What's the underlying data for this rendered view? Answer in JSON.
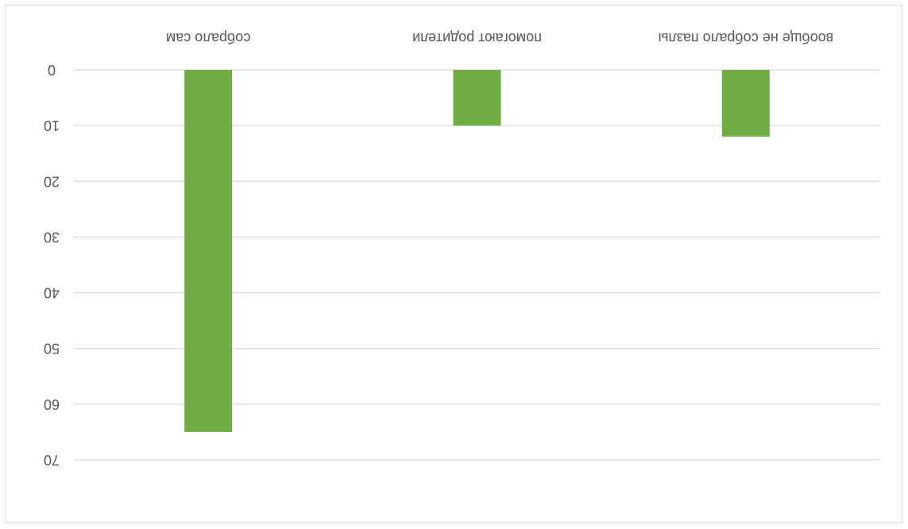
{
  "chart_data": {
    "type": "bar",
    "orientation_note": "image is rotated 180 degrees",
    "categories": [
      "собрало сам",
      "помогают родители",
      "вообще не собрало пазлы"
    ],
    "values": [
      65,
      10,
      12
    ],
    "ylim": [
      0,
      70
    ],
    "yticks": [
      0,
      10,
      20,
      30,
      40,
      50,
      60,
      70
    ],
    "grid": true,
    "legend": "none",
    "bar_color": "#70ad47",
    "grid_color": "#d9d9d9",
    "text_color": "#595959"
  }
}
